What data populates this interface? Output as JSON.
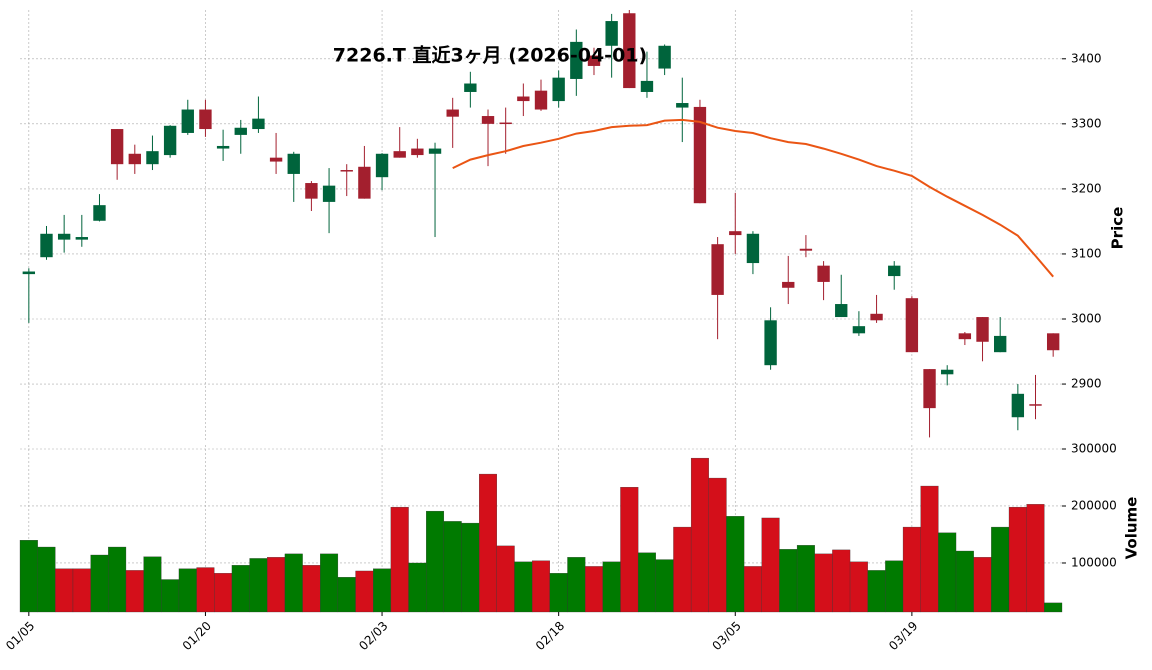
{
  "chart_data": {
    "type": "candlestick",
    "title": "7226.T 直近3ヶ月 (2026-04-01)",
    "ylabel": "Price",
    "categories": [
      "01/05",
      null,
      null,
      null,
      null,
      null,
      null,
      null,
      null,
      null,
      "01/20",
      null,
      null,
      null,
      null,
      null,
      null,
      null,
      null,
      null,
      "02/03",
      null,
      null,
      null,
      null,
      null,
      null,
      null,
      null,
      null,
      "02/18",
      null,
      null,
      null,
      null,
      null,
      null,
      null,
      null,
      null,
      "03/05",
      null,
      null,
      null,
      null,
      null,
      null,
      null,
      null,
      null,
      "03/19",
      null,
      null,
      null,
      null,
      null,
      null,
      null,
      null
    ],
    "open": [
      3069,
      3095,
      3122,
      3122,
      3151,
      3292,
      3254,
      3238,
      3252,
      3286,
      3322,
      3262,
      3283,
      3292,
      3248,
      3223,
      3209,
      3180,
      3229,
      3234,
      3218,
      3258,
      3262,
      3254,
      3322,
      3349,
      3312,
      3302,
      3342,
      3351,
      3335,
      3369,
      3405,
      3420,
      3470,
      3349,
      3385,
      3325,
      3326,
      3115,
      3135,
      3086,
      2929,
      3057,
      3108,
      3082,
      3003,
      2978,
      3008,
      3066,
      3032,
      2923,
      2915,
      2978,
      3003,
      2949,
      2849,
      2869,
      2978
    ],
    "high": [
      3078,
      3143,
      3160,
      3160,
      3192,
      3292,
      3268,
      3282,
      3298,
      3337,
      3337,
      3291,
      3306,
      3342,
      3286,
      3257,
      3212,
      3232,
      3238,
      3266,
      3255,
      3295,
      3277,
      3271,
      3340,
      3380,
      3322,
      3325,
      3362,
      3368,
      3382,
      3445,
      3417,
      3469,
      3475,
      3411,
      3422,
      3371,
      3337,
      3126,
      3194,
      3135,
      3018,
      3097,
      3129,
      3089,
      3068,
      3012,
      3037,
      3089,
      3035,
      2923,
      2929,
      2980,
      3003,
      3003,
      2900,
      2914,
      2978
    ],
    "low": [
      2994,
      3091,
      3102,
      3111,
      3150,
      3214,
      3223,
      3229,
      3248,
      3283,
      3280,
      3243,
      3254,
      3286,
      3223,
      3180,
      3166,
      3132,
      3189,
      3185,
      3198,
      3248,
      3248,
      3126,
      3263,
      3325,
      3235,
      3254,
      3312,
      3320,
      3325,
      3343,
      3375,
      3371,
      3355,
      3340,
      3375,
      3272,
      3178,
      2969,
      3100,
      3069,
      2922,
      3023,
      3095,
      3029,
      3003,
      2974,
      2994,
      3045,
      2949,
      2818,
      2898,
      2960,
      2935,
      2949,
      2829,
      2846,
      2942
    ],
    "close": [
      3073,
      3131,
      3131,
      3126,
      3175,
      3238,
      3238,
      3258,
      3297,
      3322,
      3292,
      3266,
      3294,
      3308,
      3242,
      3254,
      3185,
      3205,
      3228,
      3185,
      3254,
      3248,
      3252,
      3262,
      3311,
      3362,
      3300,
      3300,
      3335,
      3322,
      3371,
      3426,
      3389,
      3458,
      3355,
      3366,
      3420,
      3332,
      3178,
      3037,
      3129,
      3131,
      2998,
      3048,
      3105,
      3057,
      3023,
      2989,
      2998,
      3082,
      2949,
      2863,
      2922,
      2969,
      2965,
      2974,
      2885,
      2868,
      2952
    ],
    "up_color": "#00643c",
    "down_color": "#a31f2e",
    "ylim": [
      2814,
      3475
    ],
    "yticks": [
      2900,
      3000,
      3100,
      3200,
      3300,
      3400
    ],
    "grid": true,
    "ma": {
      "color": "#ea5514",
      "values": [
        null,
        null,
        null,
        null,
        null,
        null,
        null,
        null,
        null,
        null,
        null,
        null,
        null,
        null,
        null,
        null,
        null,
        null,
        null,
        null,
        null,
        null,
        null,
        null,
        3232,
        3245,
        3252,
        3258,
        3266,
        3271,
        3277,
        3285,
        3289,
        3295,
        3297,
        3298,
        3305,
        3306,
        3303,
        3294,
        3289,
        3286,
        3278,
        3272,
        3269,
        3262,
        3254,
        3245,
        3235,
        3228,
        3220,
        3203,
        3188,
        3174,
        3160,
        3145,
        3128,
        3097,
        3065
      ]
    },
    "volume": {
      "label": "Volume",
      "values": [
        140000,
        128000,
        90000,
        90000,
        114000,
        128000,
        87000,
        111000,
        71000,
        90000,
        92000,
        82000,
        96000,
        108000,
        110000,
        116000,
        96000,
        116000,
        75000,
        86000,
        90000,
        198000,
        100000,
        191000,
        173000,
        170000,
        256000,
        130000,
        102000,
        104000,
        82000,
        110000,
        94000,
        102000,
        233000,
        118000,
        106000,
        163000,
        284000,
        249000,
        182000,
        94000,
        179000,
        124000,
        131000,
        116000,
        123000,
        102000,
        87000,
        104000,
        163000,
        235000,
        153000,
        121000,
        110000,
        163000,
        198000,
        203000,
        30000
      ],
      "colors": [
        "#007a00",
        "#007a00",
        "#d40f1a",
        "#d40f1a",
        "#007a00",
        "#007a00",
        "#d40f1a",
        "#007a00",
        "#007a00",
        "#007a00",
        "#d40f1a",
        "#d40f1a",
        "#007a00",
        "#007a00",
        "#d40f1a",
        "#007a00",
        "#d40f1a",
        "#007a00",
        "#007a00",
        "#d40f1a",
        "#007a00",
        "#d40f1a",
        "#007a00",
        "#007a00",
        "#007a00",
        "#007a00",
        "#d40f1a",
        "#d40f1a",
        "#007a00",
        "#d40f1a",
        "#007a00",
        "#007a00",
        "#d40f1a",
        "#007a00",
        "#d40f1a",
        "#007a00",
        "#007a00",
        "#d40f1a",
        "#d40f1a",
        "#d40f1a",
        "#007a00",
        "#d40f1a",
        "#d40f1a",
        "#007a00",
        "#007a00",
        "#d40f1a",
        "#d40f1a",
        "#d40f1a",
        "#007a00",
        "#007a00",
        "#d40f1a",
        "#d40f1a",
        "#007a00",
        "#007a00",
        "#d40f1a",
        "#007a00",
        "#d40f1a",
        "#d40f1a",
        "#007a00"
      ],
      "ylim": [
        14000,
        307000
      ],
      "yticks": [
        100000,
        200000,
        300000
      ]
    }
  }
}
